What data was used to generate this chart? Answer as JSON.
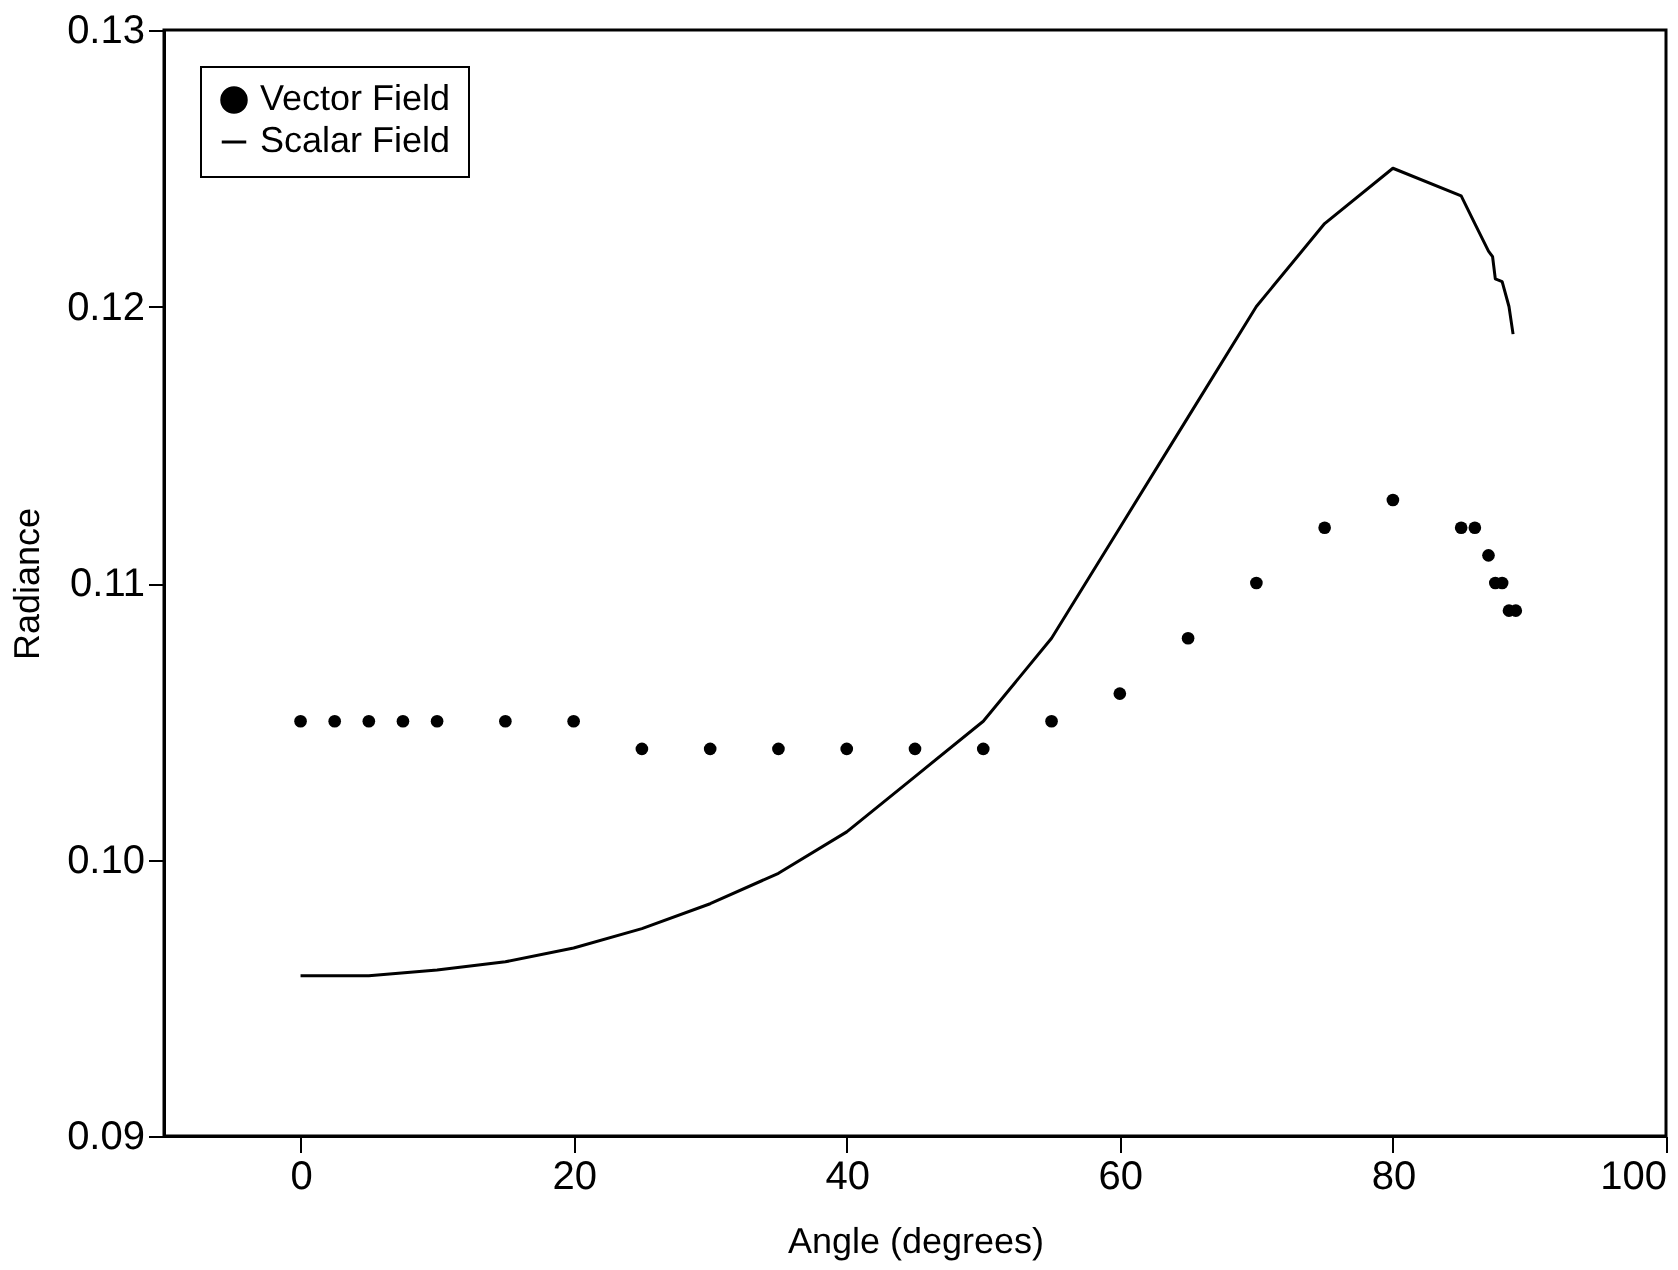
{
  "chart_data": {
    "type": "scatter",
    "xlabel": "Angle (degrees)",
    "ylabel": "Radiance",
    "xlim": [
      -10,
      100
    ],
    "ylim": [
      0.09,
      0.13
    ],
    "xticks": [
      0,
      20,
      40,
      60,
      80,
      100
    ],
    "yticks": [
      {
        "value": 0.09,
        "label": "0.09"
      },
      {
        "value": 0.1,
        "label": "0.10"
      },
      {
        "value": 0.11,
        "label": "0.11"
      },
      {
        "value": 0.12,
        "label": "0.12"
      },
      {
        "value": 0.13,
        "label": "0.13"
      }
    ],
    "grid": false,
    "legend": "top left",
    "series": [
      {
        "name": "Vector Field",
        "marker": "circle",
        "color": "#000000",
        "x": [
          0,
          2.5,
          5,
          7.5,
          10,
          15,
          20,
          25,
          30,
          35,
          40,
          45,
          50,
          55,
          60,
          65,
          70,
          75,
          80,
          85,
          86,
          87,
          87.5,
          88,
          88.5,
          89
        ],
        "values": [
          0.105,
          0.105,
          0.105,
          0.105,
          0.105,
          0.105,
          0.105,
          0.104,
          0.104,
          0.104,
          0.104,
          0.104,
          0.104,
          0.105,
          0.106,
          0.108,
          0.11,
          0.112,
          0.113,
          0.112,
          0.112,
          0.111,
          0.11,
          0.11,
          0.109,
          0.109
        ]
      },
      {
        "name": "Scalar Field",
        "type": "line",
        "line_style": "solid",
        "color": "#000000",
        "x": [
          0,
          5,
          10,
          15,
          20,
          25,
          30,
          35,
          40,
          45,
          50,
          55,
          60,
          65,
          70,
          75,
          80,
          85,
          86,
          87,
          87.3,
          87.5,
          88,
          88.5,
          88.8
        ],
        "values": [
          0.0958,
          0.0958,
          0.096,
          0.0963,
          0.0968,
          0.0975,
          0.0984,
          0.0995,
          0.101,
          0.103,
          0.105,
          0.108,
          0.112,
          0.116,
          0.12,
          0.123,
          0.125,
          0.124,
          0.123,
          0.122,
          0.1218,
          0.121,
          0.1209,
          0.12,
          0.119
        ]
      }
    ]
  }
}
